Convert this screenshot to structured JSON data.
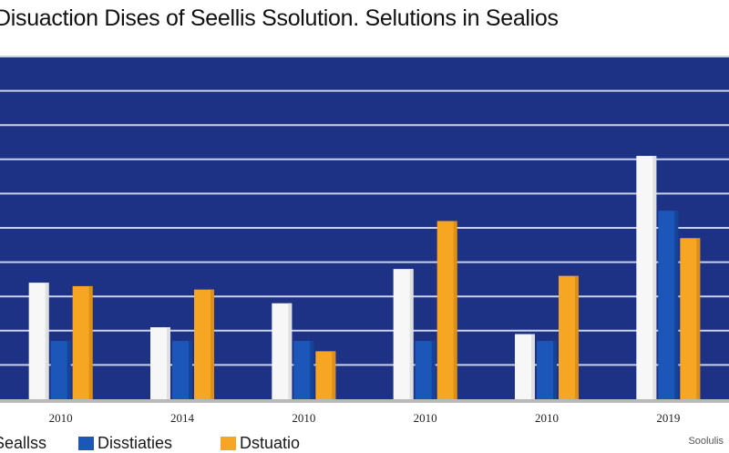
{
  "title": "Disuaction Dises of Seellis Ssolution. Selutions in Sealios",
  "colors": {
    "plot_bg": "#1d3284",
    "grid": "#c9d0ea",
    "white_bar": "#f7f7f7",
    "blue_bar": "#1b56b8",
    "orange_bar": "#f6a623",
    "baseline": "#b9b9b9"
  },
  "chart_data": {
    "type": "bar",
    "ylim": [
      0,
      100
    ],
    "grid": true,
    "categories": [
      "2010",
      "2014",
      "2010",
      "2010",
      "2010",
      "2019"
    ],
    "series": [
      {
        "name": "Seallss",
        "color": "#f7f7f7",
        "values": [
          34,
          21,
          28,
          38,
          19,
          71
        ]
      },
      {
        "name": "Disstiaties",
        "color": "#1b56b8",
        "values": [
          17,
          17,
          17,
          17,
          17,
          55
        ]
      },
      {
        "name": "Dstuatio",
        "color": "#f6a623",
        "values": [
          33,
          32,
          14,
          52,
          36,
          47
        ]
      }
    ],
    "legend": [
      {
        "label": "Seallss",
        "color": "#f7f7f7"
      },
      {
        "label": "Disstiaties",
        "color": "#1b56b8"
      },
      {
        "label": "Dstuatio",
        "color": "#f6a623"
      }
    ],
    "legend_position": "bottom"
  },
  "credit": "Soolulis"
}
